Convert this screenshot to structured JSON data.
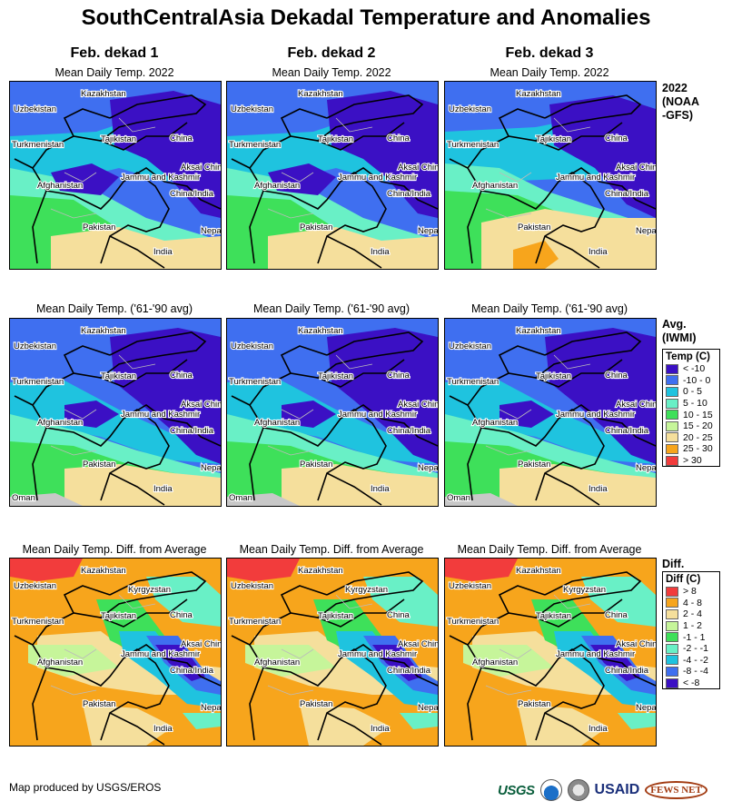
{
  "title": "SouthCentralAsia Dekadal Temperature and Anomalies",
  "columns": [
    "Feb. dekad 1",
    "Feb. dekad 2",
    "Feb. dekad 3"
  ],
  "rows": [
    {
      "subtitle": "Mean Daily Temp. 2022",
      "label_lines": [
        "2022",
        "(NOAA",
        "-GFS)"
      ]
    },
    {
      "subtitle": "Mean Daily Temp. ('61-'90 avg)",
      "label_lines": [
        "Avg.",
        "(IWMI)"
      ]
    },
    {
      "subtitle": "Mean Daily Temp. Diff. from Average",
      "label_lines": [
        "Diff."
      ]
    }
  ],
  "map_labels": {
    "kazakhstan": "Kazakhstan",
    "uzbekistan": "Uzbekistan",
    "turkmenistan": "Turkmenistan",
    "tajikistan": "Tajikistan",
    "kyrgyzstan": "Kyrgyzstan",
    "afghanistan": "Afghanistan",
    "pakistan": "Pakistan",
    "india": "India",
    "china": "China",
    "aksai_chin": "Aksai Chin",
    "jammu_kashmir": "Jammu and Kashmir",
    "china_india": "China/India",
    "nepal": "Nepal",
    "oman": "Oman"
  },
  "temp_legend": {
    "title": "Temp (C)",
    "items": [
      {
        "label": "< -10",
        "color": "#3b10c4"
      },
      {
        "label": "-10 - 0",
        "color": "#3f6ff0"
      },
      {
        "label": "0 - 5",
        "color": "#1fc3df"
      },
      {
        "label": "5 - 10",
        "color": "#69f0c6"
      },
      {
        "label": "10 - 15",
        "color": "#3ee05a"
      },
      {
        "label": "15 - 20",
        "color": "#c6f59a"
      },
      {
        "label": "20 - 25",
        "color": "#f5df9c"
      },
      {
        "label": "25 - 30",
        "color": "#f7a51c"
      },
      {
        "label": "> 30",
        "color": "#f23c3c"
      }
    ]
  },
  "diff_legend": {
    "title": "Diff (C)",
    "items": [
      {
        "label": "> 8",
        "color": "#f23c3c"
      },
      {
        "label": "4 - 8",
        "color": "#f7a51c"
      },
      {
        "label": "2 - 4",
        "color": "#f5df9c"
      },
      {
        "label": "1 - 2",
        "color": "#c6f59a"
      },
      {
        "label": "-1 - 1",
        "color": "#3ee05a"
      },
      {
        "label": "-2 - -1",
        "color": "#69f0c6"
      },
      {
        "label": "-4 - -2",
        "color": "#1fc3df"
      },
      {
        "label": "-8 - -4",
        "color": "#3f6ff0"
      },
      {
        "label": "< -8",
        "color": "#3b10c4"
      }
    ]
  },
  "footer": "Map produced by USGS/EROS",
  "logos": {
    "usgs": "USGS",
    "usaid": "USAID",
    "fews": "FEWS NET"
  }
}
